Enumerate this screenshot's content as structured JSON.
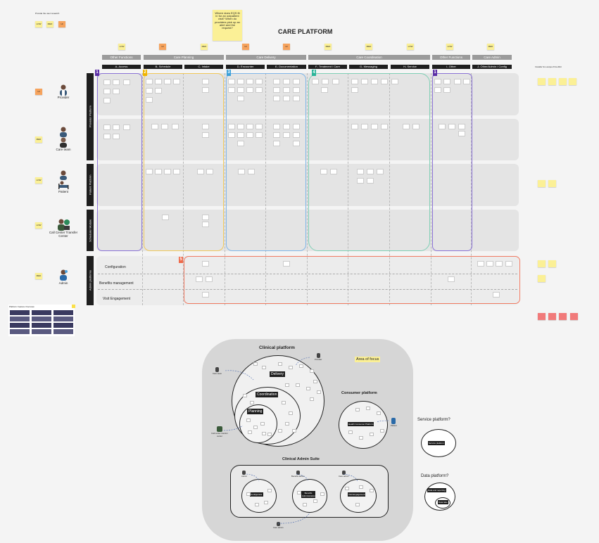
{
  "top_note": "Provide the user research",
  "question_sticky": "Where does EQS fit in for an outpatient visit? When do providers pick up an alert and the request?",
  "main_title": "CARE PLATFORM",
  "legend_stickies": [
    {
      "label": "LOW",
      "color": "#fbf096"
    },
    {
      "label": "MED",
      "color": "#fbf096"
    },
    {
      "label": "HI",
      "color": "#f6a35d"
    }
  ],
  "priority_row": [
    "LOW",
    "HI",
    "MED",
    "HI",
    "HI",
    "MED",
    "MED",
    "LOW",
    "LOW",
    "MED"
  ],
  "group_headers": [
    "Other Functions",
    "Care Planning",
    "Care Delivery",
    "Care Coordination",
    "Other Functions",
    "Care Admin"
  ],
  "columns": [
    "A- Access",
    "B- Schedule",
    "C- Intake",
    "D- Encounter",
    "E- Documentation",
    "F- Treatment / Care",
    "G- Messaging",
    "H- Service",
    "I- Other",
    "J- Other/Admin / Config"
  ],
  "right_note": "Consider for a scope of the effort",
  "lanes": [
    {
      "label": "Provider Platform"
    },
    {
      "label": "Patient Platform"
    },
    {
      "label": "Scheduler Module"
    },
    {
      "label": "Admin platforms"
    }
  ],
  "personas": [
    {
      "name": "Provider",
      "tag": "HI",
      "tag_color": "#f6a35d"
    },
    {
      "name": "Care team",
      "tag": "MED",
      "tag_color": "#fbf096"
    },
    {
      "name": "Patient",
      "tag": "LOW",
      "tag_color": "#fbf096"
    },
    {
      "name": "Call Center Transfer Center",
      "tag": "LOW",
      "tag_color": "#fbf096"
    },
    {
      "name": "Admin",
      "tag": "MED",
      "tag_color": "#fbf096"
    }
  ],
  "admin_rows": [
    "Configuration",
    "Benefits management",
    "Visit Engagement"
  ],
  "badges": [
    {
      "num": "1",
      "color": "#5b2ea6"
    },
    {
      "num": "2",
      "color": "#f0b400"
    },
    {
      "num": "3",
      "color": "#3aa0d8"
    },
    {
      "num": "4",
      "color": "#2bb59a"
    },
    {
      "num": "1",
      "color": "#5b2ea6"
    },
    {
      "num": "5",
      "color": "#ef6a4a"
    }
  ],
  "thumbnail_title": "Platform Feature Overview",
  "diagram": {
    "clinical_platform": "Clinical platform",
    "area_of_focus": "Area of focus",
    "delivery": "Delivery",
    "coordination": "Coordination",
    "planning": "Planning",
    "consumer_platform": "Consumer platform",
    "consumer_inner": "Health Consumer Platform",
    "admin_suite": "Clinical Admin Suite",
    "configurator": "Configurator",
    "benefits": "Benefits Administration",
    "visit_engagement": "Visit Engagement",
    "provider": "Provider",
    "care_team": "Care team",
    "call_center": "Call center transfer center",
    "patient": "Patient",
    "admin": "Admin",
    "benefits_admin": "Benefits admin",
    "care_admin": "Care admin"
  },
  "service_platform": {
    "title": "Service platform?",
    "inner": "Service platform"
  },
  "data_platform": {
    "title": "Data platform?",
    "inner": "Data and reporting",
    "inner2": "Data lake"
  },
  "colors": {
    "planning": "#f0c85a",
    "delivery": "#7fb6e8",
    "coordination": "#7fcfb5",
    "other": "#8a72d6",
    "admin": "#ef7a62"
  }
}
